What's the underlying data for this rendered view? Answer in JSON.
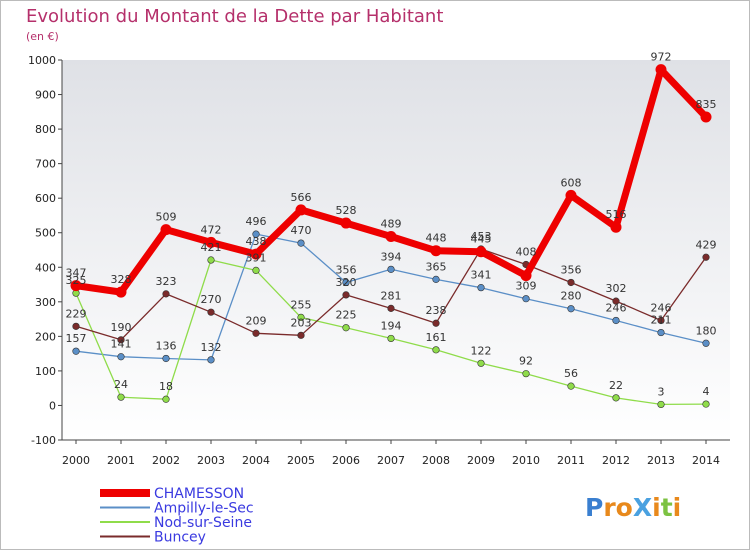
{
  "chart_data": {
    "type": "line",
    "title": "Evolution du Montant de la Dette par Habitant",
    "subtitle": "(en €)",
    "x": [
      "2000",
      "2001",
      "2002",
      "2003",
      "2004",
      "2005",
      "2006",
      "2007",
      "2008",
      "2009",
      "2010",
      "2011",
      "2012",
      "2013",
      "2014"
    ],
    "ylim": [
      -100,
      1000
    ],
    "yticks": [
      -100,
      0,
      100,
      200,
      300,
      400,
      500,
      600,
      700,
      800,
      900,
      1000
    ],
    "grid": false,
    "legend_placement": "bottom-left",
    "series": [
      {
        "name": "CHAMESSON",
        "color": "#ee0000",
        "values": [
          347,
          328,
          509,
          472,
          438,
          566,
          528,
          489,
          448,
          445,
          376,
          608,
          516,
          972,
          835
        ],
        "labels": [
          "347",
          "328",
          "509",
          "472",
          "438",
          "566",
          "528",
          "489",
          "448",
          "445",
          "",
          "608",
          "516",
          "972",
          "835"
        ]
      },
      {
        "name": "Ampilly-le-Sec",
        "color": "#5b8fc7",
        "values": [
          157,
          141,
          136,
          132,
          496,
          470,
          356,
          394,
          365,
          341,
          309,
          280,
          246,
          211,
          180
        ],
        "labels": [
          "157",
          "141",
          "136",
          "132",
          "496",
          "470",
          "356",
          "394",
          "365",
          "341",
          "309",
          "280",
          "246",
          "211",
          "180"
        ]
      },
      {
        "name": "Nod-sur-Seine",
        "color": "#8fdc4a",
        "values": [
          325,
          24,
          18,
          421,
          391,
          255,
          225,
          194,
          161,
          122,
          92,
          56,
          22,
          3,
          4
        ],
        "labels": [
          "325",
          "24",
          "18",
          "421",
          "391",
          "255",
          "225",
          "194",
          "161",
          "122",
          "92",
          "56",
          "22",
          "3",
          "4"
        ]
      },
      {
        "name": "Buncey",
        "color": "#7a2b2b",
        "values": [
          229,
          190,
          323,
          270,
          209,
          203,
          320,
          281,
          238,
          453,
          408,
          356,
          302,
          246,
          429
        ],
        "labels": [
          "229",
          "190",
          "323",
          "270",
          "209",
          "203",
          "320",
          "281",
          "238",
          "453",
          "408",
          "356",
          "302",
          "246",
          "429"
        ]
      }
    ]
  },
  "brand": {
    "logo_text": "ProXiti"
  }
}
